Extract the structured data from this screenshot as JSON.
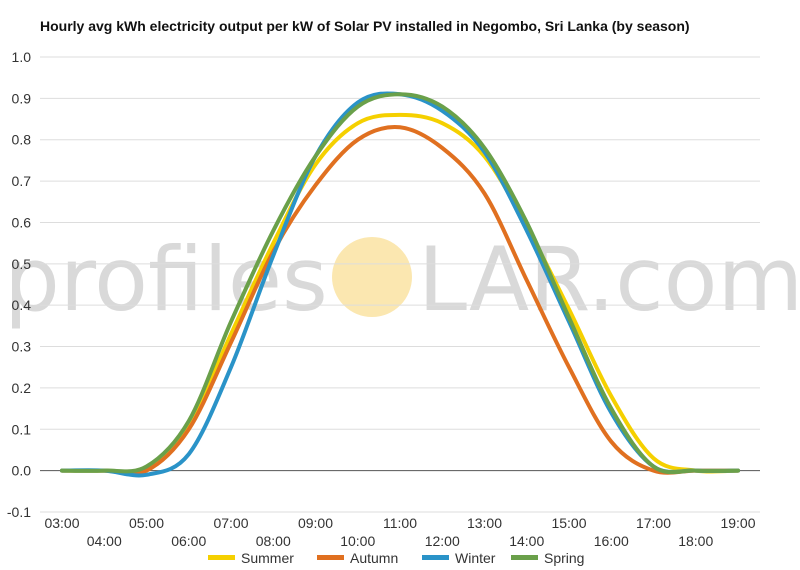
{
  "watermark": {
    "left": "profiles",
    "right": "LAR.com",
    "sun_color": "#fbe7b0"
  },
  "chart_data": {
    "type": "line",
    "title": "Hourly avg kWh electricity output per kW of Solar PV installed in Negombo, Sri Lanka (by season)",
    "xlabel": "",
    "ylabel": "",
    "x": [
      "03:00",
      "04:00",
      "05:00",
      "06:00",
      "07:00",
      "08:00",
      "09:00",
      "10:00",
      "11:00",
      "12:00",
      "13:00",
      "14:00",
      "15:00",
      "16:00",
      "17:00",
      "18:00",
      "19:00"
    ],
    "ylim": [
      -0.1,
      1.0
    ],
    "yticks": [
      "-0.1",
      "0.0",
      "0.1",
      "0.2",
      "0.3",
      "0.4",
      "0.5",
      "0.6",
      "0.7",
      "0.8",
      "0.9",
      "1.0"
    ],
    "grid": true,
    "legend_position": "bottom",
    "series": [
      {
        "name": "Summer",
        "color": "#f5d000",
        "values": [
          0,
          0,
          0,
          0.11,
          0.33,
          0.55,
          0.74,
          0.84,
          0.86,
          0.84,
          0.76,
          0.59,
          0.39,
          0.18,
          0.03,
          0,
          0
        ]
      },
      {
        "name": "Autumn",
        "color": "#e07020",
        "values": [
          0,
          0,
          0,
          0.1,
          0.31,
          0.53,
          0.69,
          0.8,
          0.83,
          0.78,
          0.67,
          0.46,
          0.25,
          0.07,
          0,
          0,
          0
        ]
      },
      {
        "name": "Winter",
        "color": "#2a93c8",
        "values": [
          0,
          0,
          -0.01,
          0.04,
          0.25,
          0.52,
          0.76,
          0.89,
          0.91,
          0.87,
          0.77,
          0.58,
          0.36,
          0.14,
          0.01,
          0,
          0
        ]
      },
      {
        "name": "Spring",
        "color": "#6aa04a",
        "values": [
          0,
          0,
          0.01,
          0.12,
          0.36,
          0.58,
          0.76,
          0.88,
          0.91,
          0.88,
          0.78,
          0.6,
          0.37,
          0.15,
          0.01,
          0,
          0
        ]
      }
    ]
  }
}
